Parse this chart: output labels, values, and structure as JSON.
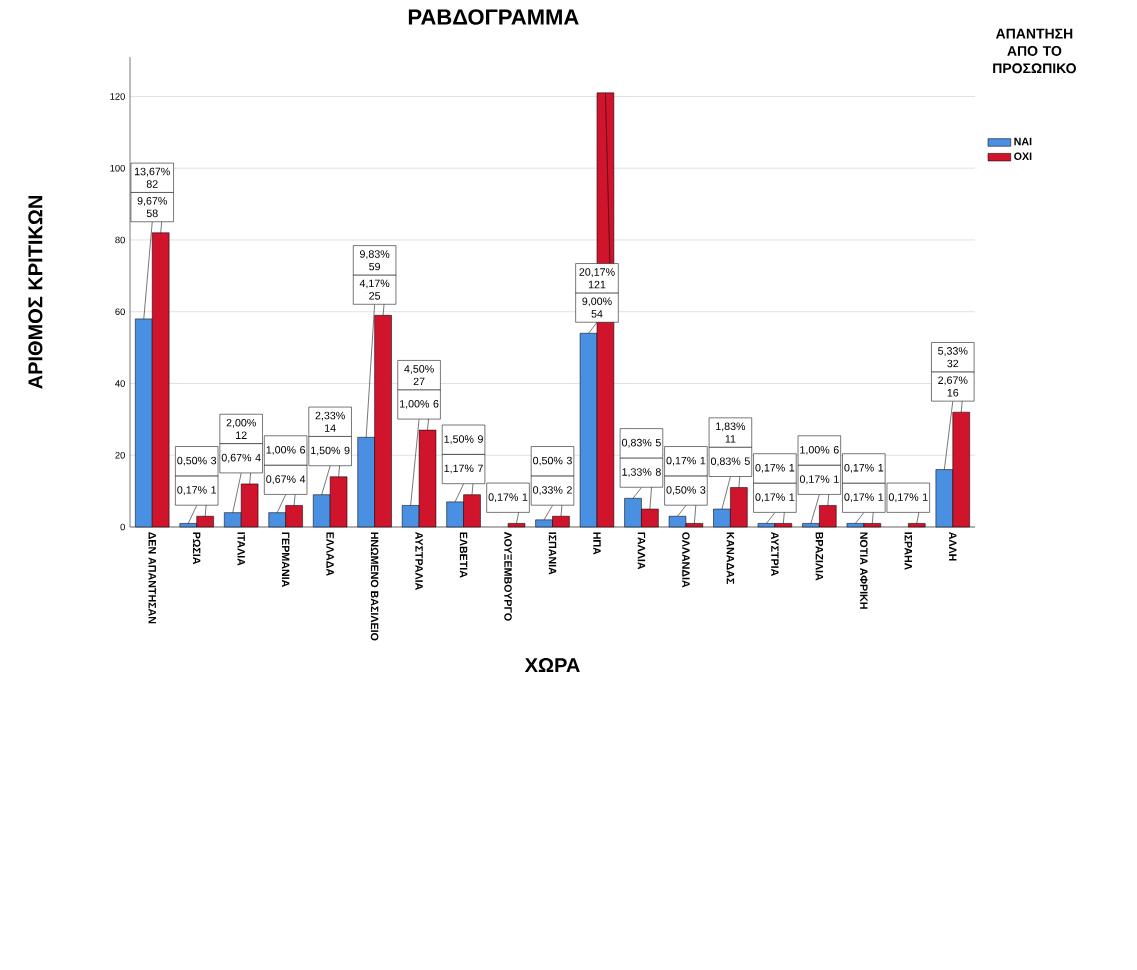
{
  "chart_data": {
    "type": "bar",
    "title": "ΡΑΒΔΟΓΡΑΜΜΑ",
    "xlabel": "ΧΩΡΑ",
    "ylabel": "ΑΡΙΘΜΟΣ ΚΡΙΤΙΚΩΝ",
    "legend_title": "ΑΠΑΝΤΗΣΗ ΑΠΟ ΤΟ ΠΡΟΣΩΠΙΚΟ",
    "categories": [
      "ΔΕΝ ΑΠΑΝΤΗΣΑΝ",
      "ΡΩΣΙΑ",
      "ΙΤΑΛΙΑ",
      "ΓΕΡΜΑΝΙΑ",
      "ΕΛΛΑΔΑ",
      "ΗΝΩΜΕΝΟ ΒΑΣΙΛΕΙΟ",
      "ΑΥΣΤΡΑΛΙΑ",
      "ΕΛΒΕΤΙΑ",
      "ΛΟΥΞΕΜΒΟΥΡΓΟ",
      "ΙΣΠΑΝΙΑ",
      "ΗΠΑ",
      "ΓΑΛΛΙΑ",
      "ΟΛΛΑΝΔΙΑ",
      "ΚΑΝΑΔΑΣ",
      "ΑΥΣΤΡΙΑ",
      "ΒΡΑΖΙΛΙΑ",
      "ΝΟΤΙΑ ΑΦΡΙΚΗ",
      "ΙΣΡΑΗΛ",
      "ΑΛΛΗ"
    ],
    "series": [
      {
        "name": "ΝΑΙ",
        "color": "#4a90e2",
        "values": [
          58,
          1,
          4,
          4,
          9,
          25,
          6,
          7,
          null,
          2,
          54,
          8,
          3,
          5,
          1,
          1,
          1,
          null,
          16
        ],
        "value_labels": [
          "9,67% 58",
          "0,17% 1",
          "0,67% 4",
          "0,67% 4",
          "1,50% 9",
          "4,17% 25",
          "1,00% 6",
          "1,17% 7",
          null,
          "0,33% 2",
          "9,00% 54",
          "1,33% 8",
          "0,50% 3",
          "0,83% 5",
          "0,17% 1",
          "0,17% 1",
          "0,17% 1",
          null,
          "2,67% 16"
        ]
      },
      {
        "name": "ΟΧΙ",
        "color": "#d0142c",
        "values": [
          82,
          3,
          12,
          6,
          14,
          59,
          27,
          9,
          1,
          3,
          121,
          5,
          1,
          11,
          1,
          6,
          1,
          1,
          32
        ],
        "value_labels": [
          "13,67% 82",
          "0,50% 3",
          "2,00% 12",
          "1,00% 6",
          "2,33% 14",
          "9,83% 59",
          "4,50% 27",
          "1,50% 9",
          "0,17% 1",
          "0,50% 3",
          "20,17% 121",
          "0,83% 5",
          "0,17% 1",
          "1,83% 11",
          "0,17% 1",
          "1,00% 6",
          "0,17% 1",
          "0,17% 1",
          "5,33% 32"
        ]
      }
    ],
    "ylim": [
      0,
      131
    ],
    "yticks": [
      0,
      20,
      40,
      60,
      80,
      100,
      120
    ],
    "grid": "y",
    "legend": "top right"
  }
}
